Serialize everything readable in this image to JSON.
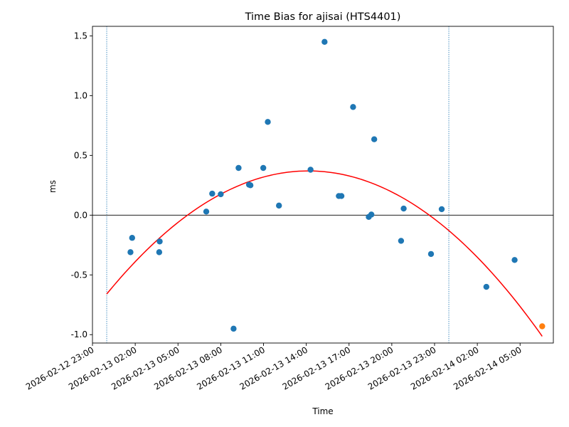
{
  "chart_data": {
    "type": "scatter",
    "title": "Time Bias for ajisai (HTS4401)",
    "xlabel": "Time",
    "ylabel": "ms",
    "x_ticks": [
      "2026-02-12 23:00",
      "2026-02-13 02:00",
      "2026-02-13 05:00",
      "2026-02-13 08:00",
      "2026-02-13 11:00",
      "2026-02-13 14:00",
      "2026-02-13 17:00",
      "2026-02-13 20:00",
      "2026-02-13 23:00",
      "2026-02-14 02:00",
      "2026-02-14 05:00"
    ],
    "y_ticks": [
      -1.0,
      -0.5,
      0.0,
      0.5,
      1.0,
      1.5
    ],
    "xlim": [
      "2026-02-12 23:00",
      "2026-02-14 07:20"
    ],
    "ylim": [
      -1.07,
      1.58
    ],
    "colors": {
      "points": "#1f77b4",
      "fit": "#ff0000",
      "highlight": "#ff7f0e",
      "pass": "#1f77b4",
      "zero": "#000000"
    },
    "points": [
      {
        "t": "2026-02-13 01:40",
        "v": -0.31
      },
      {
        "t": "2026-02-13 01:47",
        "v": -0.19
      },
      {
        "t": "2026-02-13 03:41",
        "v": -0.31
      },
      {
        "t": "2026-02-13 03:43",
        "v": -0.22
      },
      {
        "t": "2026-02-13 06:59",
        "v": 0.03
      },
      {
        "t": "2026-02-13 07:24",
        "v": 0.18
      },
      {
        "t": "2026-02-13 08:00",
        "v": 0.175
      },
      {
        "t": "2026-02-13 08:54",
        "v": -0.95
      },
      {
        "t": "2026-02-13 09:15",
        "v": 0.395
      },
      {
        "t": "2026-02-13 09:59",
        "v": 0.255
      },
      {
        "t": "2026-02-13 10:05",
        "v": 0.25
      },
      {
        "t": "2026-02-13 10:59",
        "v": 0.395
      },
      {
        "t": "2026-02-13 11:18",
        "v": 0.78
      },
      {
        "t": "2026-02-13 12:05",
        "v": 0.08
      },
      {
        "t": "2026-02-13 14:18",
        "v": 0.38
      },
      {
        "t": "2026-02-13 15:17",
        "v": 1.45
      },
      {
        "t": "2026-02-13 16:17",
        "v": 0.16
      },
      {
        "t": "2026-02-13 16:28",
        "v": 0.16
      },
      {
        "t": "2026-02-13 17:17",
        "v": 0.905
      },
      {
        "t": "2026-02-13 18:23",
        "v": -0.015
      },
      {
        "t": "2026-02-13 18:34",
        "v": 0.005
      },
      {
        "t": "2026-02-13 18:46",
        "v": 0.635
      },
      {
        "t": "2026-02-13 20:39",
        "v": -0.215
      },
      {
        "t": "2026-02-13 20:50",
        "v": 0.055
      },
      {
        "t": "2026-02-13 22:45",
        "v": -0.325
      },
      {
        "t": "2026-02-13 23:30",
        "v": 0.05
      },
      {
        "t": "2026-02-14 02:38",
        "v": -0.6
      },
      {
        "t": "2026-02-14 04:37",
        "v": -0.375
      }
    ],
    "highlight_point": {
      "t": "2026-02-14 06:33",
      "v": -0.93
    },
    "fit_curve": {
      "type": "quadratic",
      "start": "2026-02-13 00:00",
      "end": "2026-02-14 06:33",
      "peak_time": "2026-02-13 14:09",
      "peak_value": 0.37,
      "start_value": -0.66
    },
    "pass_lines": [
      "2026-02-13 00:00",
      "2026-02-14 00:00"
    ],
    "zero_line": 0.0,
    "grid": false,
    "legend": "none"
  }
}
